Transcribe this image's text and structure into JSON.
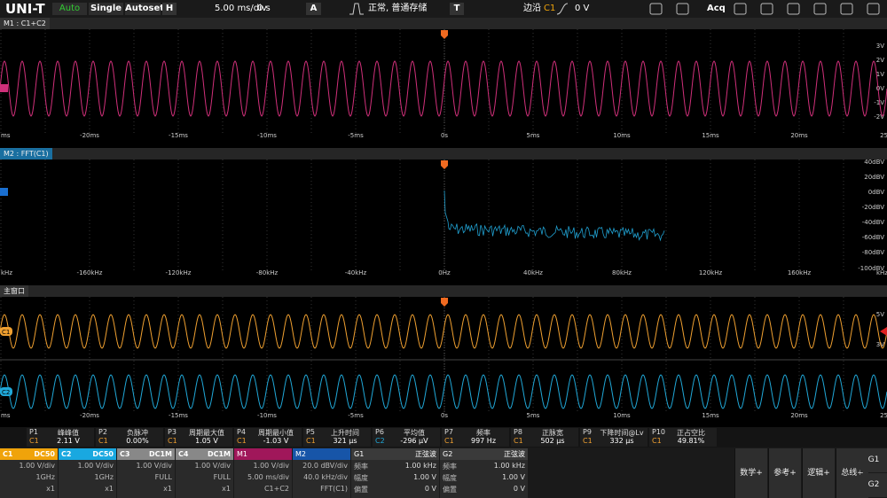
{
  "toolbar": {
    "logo": "UNI-T",
    "run_mode": "Auto",
    "single": "Single",
    "autoset": "Autoset",
    "h_label": "H",
    "timebase": "5.00 ms/div",
    "delay": "0 s",
    "a_label": "A",
    "acq_status": "正常, 普通存储",
    "t_label": "T",
    "trigger_type": "边沿",
    "trigger_source": "C1",
    "trigger_level": "0 V",
    "acq": "Acq"
  },
  "windows": [
    {
      "title": "M1 : C1+C2",
      "y_labels": [
        "3V",
        "2V",
        "1V",
        "0V",
        "-1V",
        "-2V"
      ],
      "x_labels": [
        "ms",
        "-20ms",
        "-15ms",
        "-10ms",
        "-5ms",
        "0s",
        "5ms",
        "10ms",
        "15ms",
        "20ms",
        "25"
      ]
    },
    {
      "title": "M2 : FFT(C1)",
      "y_labels": [
        "40dBV",
        "20dBV",
        "0dBV",
        "-20dBV",
        "-40dBV",
        "-60dBV",
        "-80dBV",
        "-100dBV"
      ],
      "x_labels": [
        "kHz",
        "-160kHz",
        "-120kHz",
        "-80kHz",
        "-40kHz",
        "0Hz",
        "40kHz",
        "80kHz",
        "120kHz",
        "160kHz",
        "kHz"
      ]
    },
    {
      "title": "主窗口",
      "y_labels": [
        "5V",
        "3V"
      ],
      "x_labels": [
        "ms",
        "-20ms",
        "-15ms",
        "-10ms",
        "-5ms",
        "0s",
        "5ms",
        "10ms",
        "15ms",
        "20ms",
        "25"
      ],
      "markers": [
        "C1",
        "C2"
      ]
    }
  ],
  "measurements": [
    {
      "id": "P1",
      "source": "C1",
      "name": "峰峰值",
      "value": "2.11 V"
    },
    {
      "id": "P2",
      "source": "C1",
      "name": "负脉冲",
      "value": "0.00%"
    },
    {
      "id": "P3",
      "source": "C1",
      "name": "周期最大值",
      "value": "1.05 V"
    },
    {
      "id": "P4",
      "source": "C1",
      "name": "周期最小值",
      "value": "-1.03 V"
    },
    {
      "id": "P5",
      "source": "C1",
      "name": "上升时间",
      "value": "321 µs"
    },
    {
      "id": "P6",
      "source": "C2",
      "name": "平均值",
      "value": "-296 µV"
    },
    {
      "id": "P7",
      "source": "C1",
      "name": "频率",
      "value": "997 Hz"
    },
    {
      "id": "P8",
      "source": "C1",
      "name": "正脉宽",
      "value": "502 µs"
    },
    {
      "id": "P9",
      "source": "C1",
      "name": "下降时间@Lv",
      "value": "332 µs"
    },
    {
      "id": "P10",
      "source": "C1",
      "name": "正占空比",
      "value": "49.81%"
    }
  ],
  "channels": [
    {
      "name": "C1",
      "coupling": "DC50",
      "scale": "1.00 V/div",
      "bandwidth": "1GHz",
      "probe": "x1"
    },
    {
      "name": "C2",
      "coupling": "DC50",
      "scale": "1.00 V/div",
      "bandwidth": "1GHz",
      "probe": "x1"
    },
    {
      "name": "C3",
      "coupling": "DC1M",
      "scale": "1.00 V/div",
      "bandwidth": "FULL",
      "probe": "x1"
    },
    {
      "name": "C4",
      "coupling": "DC1M",
      "scale": "1.00 V/div",
      "bandwidth": "FULL",
      "probe": "x1"
    }
  ],
  "math": [
    {
      "name": "M1",
      "scale": "1.00 V/div",
      "timebase": "5.00 ms/div",
      "source": "C1+C2"
    },
    {
      "name": "M2",
      "scale": "20.0 dBV/div",
      "timebase": "40.0 kHz/div",
      "source": "FFT(C1)"
    }
  ],
  "generators": [
    {
      "name": "G1",
      "wave": "正弦波",
      "rows": [
        [
          "频率",
          "1.00 kHz"
        ],
        [
          "幅度",
          "1.00 V"
        ],
        [
          "偏置",
          "0 V"
        ]
      ]
    },
    {
      "name": "G2",
      "wave": "正弦波",
      "rows": [
        [
          "频率",
          "1.00 kHz"
        ],
        [
          "幅度",
          "1.00 V"
        ],
        [
          "偏置",
          "0 V"
        ]
      ]
    }
  ],
  "buttons": [
    "数学+",
    "参考+",
    "逻辑+",
    "总线+"
  ],
  "gen_tabs": [
    "G1",
    "G2"
  ]
}
